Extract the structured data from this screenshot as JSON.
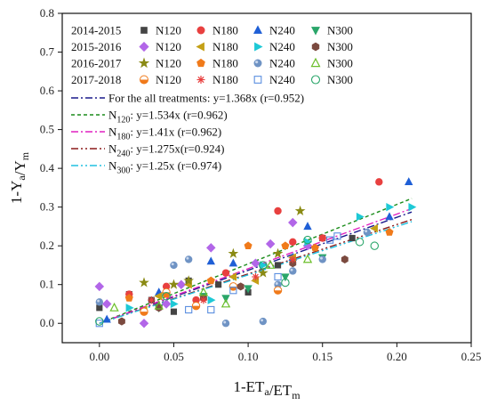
{
  "chart_data": {
    "type": "scatter",
    "xlabel": {
      "main": "1-ET",
      "sub1": "a",
      "mid": "/ET",
      "sub2": "m"
    },
    "ylabel": {
      "main": "1-Y",
      "sub1": "a",
      "mid": "/Y",
      "sub2": "m"
    },
    "xlim": [
      -0.025,
      0.25
    ],
    "ylim": [
      -0.05,
      0.8
    ],
    "xticks": [
      0.0,
      0.05,
      0.1,
      0.15,
      0.2,
      0.25
    ],
    "xtick_labels": [
      "0.00",
      "0.05",
      "0.10",
      "0.15",
      "0.20",
      "0.25"
    ],
    "yticks": [
      0.0,
      0.1,
      0.2,
      0.3,
      0.4,
      0.5,
      0.6,
      0.7,
      0.8
    ],
    "ytick_labels": [
      "0.0",
      "0.1",
      "0.2",
      "0.3",
      "0.4",
      "0.5",
      "0.6",
      "0.7",
      "0.8"
    ],
    "grid": false,
    "legend_placement": "top-left",
    "years": [
      "2014-2015",
      "2015-2016",
      "2016-2017",
      "2017-2018"
    ],
    "series": [
      {
        "year": "2014-2015",
        "label": "N120",
        "marker": "square",
        "color": "#444444",
        "filled": true,
        "points": [
          [
            0.0,
            0.04
          ],
          [
            0.02,
            0.075
          ],
          [
            0.035,
            0.06
          ],
          [
            0.05,
            0.03
          ],
          [
            0.06,
            0.11
          ],
          [
            0.08,
            0.1
          ],
          [
            0.1,
            0.08
          ],
          [
            0.12,
            0.15
          ],
          [
            0.15,
            0.22
          ],
          [
            0.17,
            0.22
          ]
        ]
      },
      {
        "year": "2014-2015",
        "label": "N180",
        "marker": "circle",
        "color": "#e8403f",
        "filled": true,
        "points": [
          [
            0.02,
            0.075
          ],
          [
            0.045,
            0.095
          ],
          [
            0.065,
            0.06
          ],
          [
            0.085,
            0.13
          ],
          [
            0.12,
            0.29
          ],
          [
            0.13,
            0.21
          ],
          [
            0.15,
            0.22
          ],
          [
            0.188,
            0.365
          ]
        ]
      },
      {
        "year": "2014-2015",
        "label": "N240",
        "marker": "triangle-up",
        "color": "#1f5fd6",
        "filled": true,
        "points": [
          [
            0.005,
            0.01
          ],
          [
            0.04,
            0.08
          ],
          [
            0.075,
            0.16
          ],
          [
            0.09,
            0.155
          ],
          [
            0.13,
            0.17
          ],
          [
            0.14,
            0.25
          ],
          [
            0.195,
            0.275
          ],
          [
            0.208,
            0.365
          ]
        ]
      },
      {
        "year": "2014-2015",
        "label": "N300",
        "marker": "triangle-down",
        "color": "#2aa66a",
        "filled": true,
        "points": [
          [
            0.04,
            0.04
          ],
          [
            0.07,
            0.07
          ],
          [
            0.085,
            0.065
          ],
          [
            0.1,
            0.09
          ],
          [
            0.125,
            0.12
          ],
          [
            0.15,
            0.17
          ]
        ]
      },
      {
        "year": "2015-2016",
        "label": "N120",
        "marker": "diamond",
        "color": "#b266e8",
        "filled": true,
        "points": [
          [
            0.0,
            0.095
          ],
          [
            0.005,
            0.05
          ],
          [
            0.03,
            0.0
          ],
          [
            0.045,
            0.05
          ],
          [
            0.055,
            0.1
          ],
          [
            0.075,
            0.195
          ],
          [
            0.105,
            0.155
          ],
          [
            0.115,
            0.205
          ],
          [
            0.13,
            0.26
          ],
          [
            0.14,
            0.2
          ]
        ]
      },
      {
        "year": "2015-2016",
        "label": "N180",
        "marker": "triangle-left",
        "color": "#c4a016",
        "filled": true,
        "points": [
          [
            0.03,
            0.035
          ],
          [
            0.04,
            0.07
          ],
          [
            0.06,
            0.1
          ],
          [
            0.09,
            0.12
          ],
          [
            0.105,
            0.11
          ],
          [
            0.13,
            0.17
          ],
          [
            0.185,
            0.245
          ]
        ]
      },
      {
        "year": "2015-2016",
        "label": "N240",
        "marker": "triangle-right",
        "color": "#1ec9d6",
        "filled": true,
        "points": [
          [
            0.02,
            0.04
          ],
          [
            0.05,
            0.05
          ],
          [
            0.075,
            0.06
          ],
          [
            0.11,
            0.15
          ],
          [
            0.14,
            0.21
          ],
          [
            0.175,
            0.275
          ],
          [
            0.195,
            0.3
          ],
          [
            0.21,
            0.3
          ]
        ]
      },
      {
        "year": "2015-2016",
        "label": "N300",
        "marker": "hexagon",
        "color": "#7b4a3f",
        "filled": true,
        "points": [
          [
            0.015,
            0.005
          ],
          [
            0.04,
            0.04
          ],
          [
            0.07,
            0.065
          ],
          [
            0.095,
            0.095
          ],
          [
            0.13,
            0.155
          ],
          [
            0.165,
            0.165
          ]
        ]
      },
      {
        "year": "2016-2017",
        "label": "N120",
        "marker": "star",
        "color": "#8a8a14",
        "filled": true,
        "points": [
          [
            0.03,
            0.105
          ],
          [
            0.05,
            0.1
          ],
          [
            0.06,
            0.11
          ],
          [
            0.09,
            0.18
          ],
          [
            0.11,
            0.13
          ],
          [
            0.12,
            0.18
          ],
          [
            0.135,
            0.29
          ]
        ]
      },
      {
        "year": "2016-2017",
        "label": "N180",
        "marker": "pentagon",
        "color": "#f07a1a",
        "filled": true,
        "points": [
          [
            0.02,
            0.065
          ],
          [
            0.045,
            0.075
          ],
          [
            0.075,
            0.11
          ],
          [
            0.1,
            0.2
          ],
          [
            0.125,
            0.2
          ],
          [
            0.145,
            0.195
          ],
          [
            0.195,
            0.235
          ]
        ]
      },
      {
        "year": "2016-2017",
        "label": "N240",
        "marker": "sphere",
        "color": "#6f93c4",
        "filled": true,
        "points": [
          [
            0.0,
            0.055
          ],
          [
            0.05,
            0.15
          ],
          [
            0.06,
            0.165
          ],
          [
            0.085,
            0.0
          ],
          [
            0.11,
            0.005
          ],
          [
            0.12,
            0.1
          ],
          [
            0.13,
            0.135
          ],
          [
            0.15,
            0.165
          ],
          [
            0.18,
            0.235
          ]
        ]
      },
      {
        "year": "2016-2017",
        "label": "N300",
        "marker": "triangle-up-open",
        "color": "#6bbf2a",
        "filled": false,
        "points": [
          [
            0.01,
            0.04
          ],
          [
            0.04,
            0.045
          ],
          [
            0.07,
            0.08
          ],
          [
            0.085,
            0.05
          ],
          [
            0.115,
            0.15
          ],
          [
            0.14,
            0.165
          ]
        ]
      },
      {
        "year": "2017-2018",
        "label": "N120",
        "marker": "half-circle",
        "color": "#f07a1a",
        "filled": true,
        "points": [
          [
            0.03,
            0.03
          ],
          [
            0.045,
            0.08
          ],
          [
            0.065,
            0.045
          ],
          [
            0.09,
            0.095
          ],
          [
            0.12,
            0.085
          ]
        ]
      },
      {
        "year": "2017-2018",
        "label": "N180",
        "marker": "asterisk",
        "color": "#e8403f",
        "filled": false,
        "points": [
          [
            0.035,
            0.06
          ],
          [
            0.07,
            0.06
          ],
          [
            0.105,
            0.12
          ],
          [
            0.13,
            0.165
          ]
        ]
      },
      {
        "year": "2017-2018",
        "label": "N240",
        "marker": "square-open",
        "color": "#5a8ee0",
        "filled": false,
        "points": [
          [
            0.0,
            0.0
          ],
          [
            0.06,
            0.035
          ],
          [
            0.075,
            0.035
          ],
          [
            0.09,
            0.085
          ],
          [
            0.12,
            0.12
          ],
          [
            0.155,
            0.215
          ],
          [
            0.16,
            0.225
          ]
        ]
      },
      {
        "year": "2017-2018",
        "label": "N300",
        "marker": "circle-open",
        "color": "#2aa66a",
        "filled": false,
        "points": [
          [
            0.0,
            0.005
          ],
          [
            0.045,
            0.07
          ],
          [
            0.11,
            0.15
          ],
          [
            0.125,
            0.105
          ],
          [
            0.14,
            0.215
          ],
          [
            0.175,
            0.21
          ],
          [
            0.185,
            0.2
          ]
        ]
      }
    ],
    "fits": [
      {
        "name": "all",
        "slope": 1.368,
        "color": "#1a1a8c",
        "dash": "8,3,2,3",
        "text": [
          "For the all treatments: y=1.368x (r=0.952)"
        ]
      },
      {
        "name": "N120",
        "slope": 1.534,
        "color": "#1a8c1a",
        "dash": "4,3",
        "text": [
          "N",
          "120",
          ": y=1.534x (r=0.962)"
        ]
      },
      {
        "name": "N180",
        "slope": 1.41,
        "color": "#e020c0",
        "dash": "8,3,2,3",
        "text": [
          "N",
          "180",
          ": y=1.41x (r=0.962)"
        ]
      },
      {
        "name": "N240",
        "slope": 1.275,
        "color": "#8c1a1a",
        "dash": "8,3,2,3,2,3",
        "text": [
          "N",
          "240",
          ": y=1.275x(r=0.924)"
        ]
      },
      {
        "name": "N300",
        "slope": 1.25,
        "color": "#20c0e0",
        "dash": "8,3,2,3,2,3",
        "text": [
          "N",
          "300",
          ": y=1.25x (r=0.974)"
        ]
      }
    ]
  }
}
